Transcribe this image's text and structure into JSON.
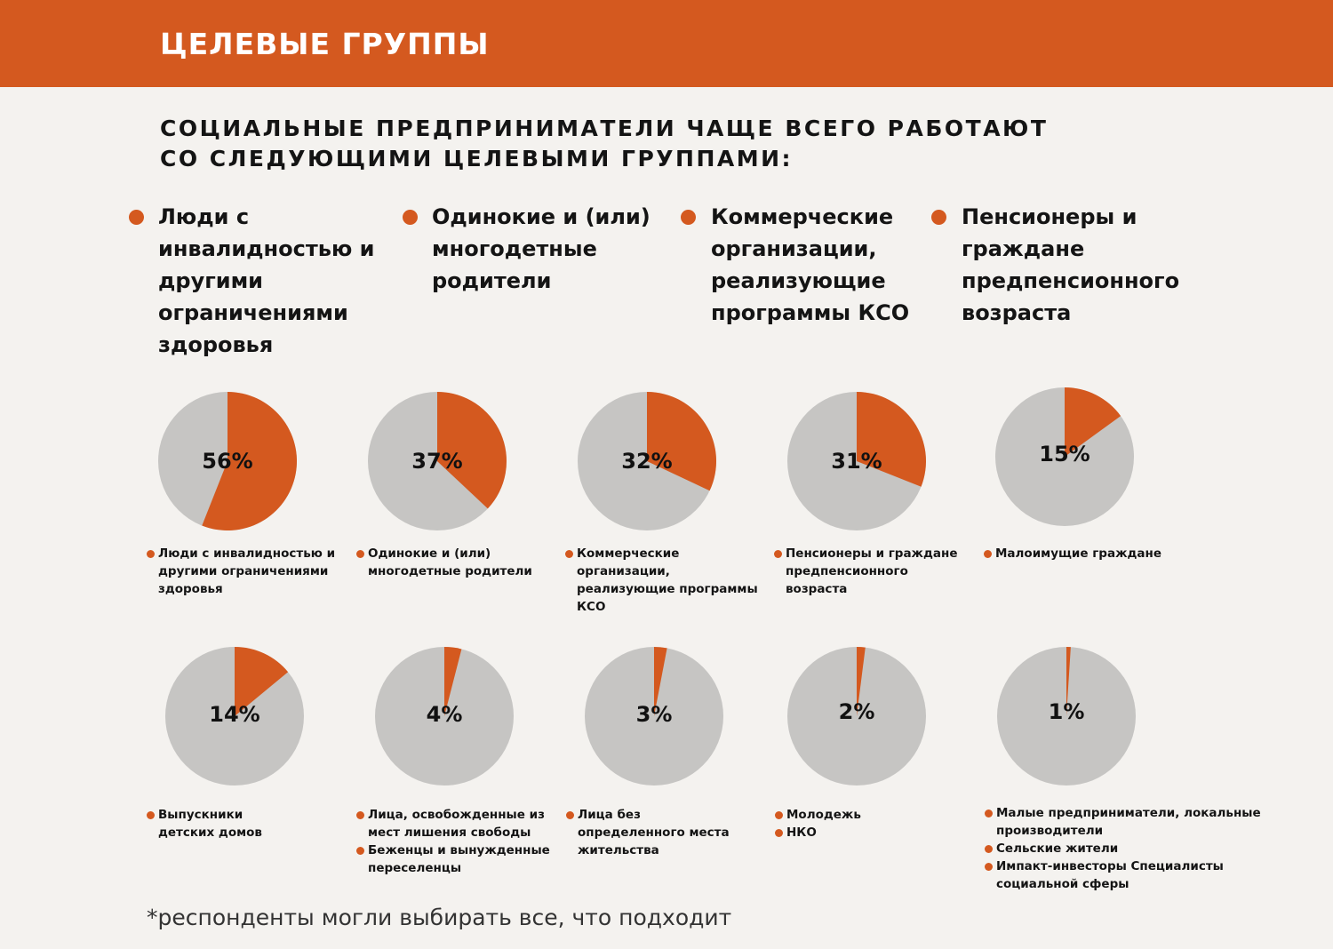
{
  "header": {
    "title": "ЦЕЛЕВЫЕ ГРУППЫ"
  },
  "subtitle": "СОЦИАЛЬНЫЕ ПРЕДПРИНИМАТЕЛИ ЧАЩЕ ВСЕГО РАБОТАЮТ СО СЛЕДУЮЩИМИ ЦЕЛЕВЫМИ ГРУППАМИ:",
  "top_groups": [
    "Люди с инвалидностью и другими ограничениями здоровья",
    "Одинокие и (или) многодетные родители",
    "Коммерческие организации, реализующие программы КСО",
    "Пенсионеры и граждане предпенсионного возраста"
  ],
  "colors": {
    "accent": "#d4591f",
    "rest": "#c6c5c3",
    "background": "#f4f2ef"
  },
  "chart_data": {
    "type": "pie",
    "unit": "%",
    "items": [
      {
        "value": 56,
        "label": "56%",
        "legend": [
          "Люди с инвалидностью и другими ограничениями здоровья"
        ]
      },
      {
        "value": 37,
        "label": "37%",
        "legend": [
          "Одинокие и (или) многодетные родители"
        ]
      },
      {
        "value": 32,
        "label": "32%",
        "legend": [
          "Коммерческие организации, реализующие программы КСО"
        ]
      },
      {
        "value": 31,
        "label": "31%",
        "legend": [
          "Пенсионеры и граждане предпенсионного возраста"
        ]
      },
      {
        "value": 15,
        "label": "15%",
        "legend": [
          "Малоимущие граждане"
        ]
      },
      {
        "value": 14,
        "label": "14%",
        "legend": [
          "Выпускники детских домов"
        ]
      },
      {
        "value": 4,
        "label": "4%",
        "legend": [
          "Лица, освобожденные из мест лишения свободы",
          "Беженцы и вынужденные переселенцы"
        ]
      },
      {
        "value": 3,
        "label": "3%",
        "legend": [
          "Лица без определенного места жительства"
        ]
      },
      {
        "value": 2,
        "label": "2%",
        "legend": [
          "Молодежь",
          "НКО"
        ]
      },
      {
        "value": 1,
        "label": "1%",
        "legend": [
          "Малые предприниматели, локальные производители",
          "Сельские жители",
          "Импакт-инвесторы Специалисты социальной сферы"
        ]
      }
    ]
  },
  "footnote": "*респонденты могли выбирать все, что подходит"
}
